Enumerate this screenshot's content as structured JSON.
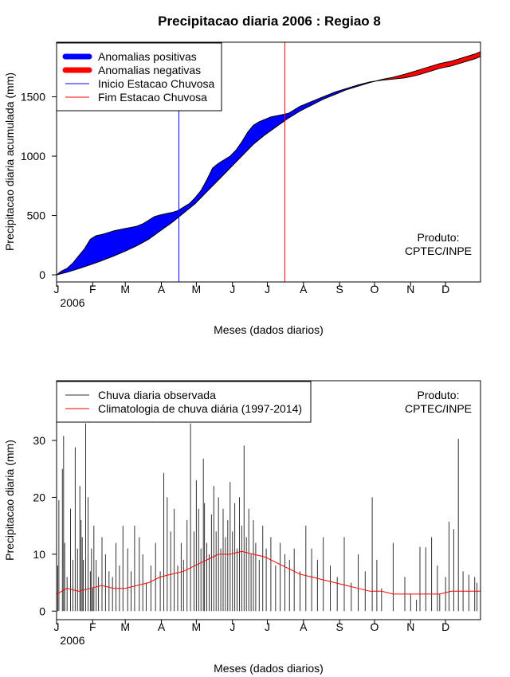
{
  "chart_data": [
    {
      "type": "area",
      "title": "Precipitacao diaria 2006 : Regiao 8",
      "xlabel": "Meses (dados diarios)",
      "ylabel": "Precipitacao diaria acumulada (mm)",
      "year_label": "2006",
      "x_ticks": [
        "J",
        "F",
        "M",
        "A",
        "M",
        "J",
        "J",
        "A",
        "S",
        "O",
        "N",
        "D"
      ],
      "x_tick_days": [
        1,
        32,
        60,
        91,
        121,
        152,
        182,
        213,
        244,
        274,
        305,
        335
      ],
      "xlim": [
        1,
        365
      ],
      "y_ticks": [
        0,
        500,
        1000,
        1500
      ],
      "ylim": [
        -60,
        1960
      ],
      "legend": [
        {
          "label": "Anomalias positivas",
          "color": "#0000ff",
          "kind": "thick"
        },
        {
          "label": "Anomalias negativas",
          "color": "#ff0000",
          "kind": "thick"
        },
        {
          "label": "Inicio Estacao Chuvosa",
          "color": "#0000ff",
          "kind": "thin"
        },
        {
          "label": "Fim Estacao Chuvosa",
          "color": "#ff0000",
          "kind": "thin"
        }
      ],
      "legend_position": "top-left",
      "rainy_season_start_day": 106,
      "rainy_season_end_day": 197,
      "credit": [
        "Produto:",
        "CPTEC/INPE"
      ],
      "observed_cumulative": {
        "days": [
          1,
          5,
          10,
          15,
          20,
          25,
          30,
          35,
          40,
          45,
          50,
          55,
          60,
          65,
          70,
          75,
          80,
          85,
          90,
          95,
          100,
          105,
          110,
          115,
          120,
          125,
          130,
          135,
          140,
          145,
          150,
          155,
          160,
          165,
          170,
          175,
          180,
          185,
          190,
          195,
          200,
          205,
          210,
          215,
          220,
          225,
          230,
          240,
          250,
          260,
          270,
          280,
          290,
          300,
          310,
          320,
          330,
          340,
          350,
          360,
          365
        ],
        "values": [
          0,
          30,
          55,
          100,
          160,
          220,
          300,
          330,
          340,
          355,
          370,
          380,
          390,
          400,
          410,
          430,
          460,
          490,
          505,
          515,
          525,
          540,
          570,
          600,
          650,
          710,
          800,
          900,
          940,
          970,
          1000,
          1050,
          1120,
          1200,
          1260,
          1290,
          1310,
          1330,
          1340,
          1350,
          1360,
          1390,
          1420,
          1440,
          1460,
          1480,
          1500,
          1540,
          1570,
          1600,
          1625,
          1640,
          1650,
          1660,
          1680,
          1710,
          1740,
          1760,
          1790,
          1820,
          1840
        ]
      },
      "climatology_cumulative": {
        "days": [
          1,
          10,
          20,
          30,
          40,
          50,
          60,
          70,
          80,
          90,
          100,
          110,
          120,
          130,
          140,
          150,
          160,
          170,
          180,
          190,
          200,
          210,
          220,
          230,
          240,
          250,
          260,
          270,
          280,
          290,
          300,
          310,
          320,
          330,
          340,
          350,
          360,
          365
        ],
        "values": [
          0,
          22,
          52,
          85,
          120,
          158,
          200,
          245,
          300,
          370,
          440,
          520,
          600,
          700,
          800,
          900,
          1000,
          1100,
          1180,
          1250,
          1320,
          1380,
          1430,
          1480,
          1520,
          1560,
          1590,
          1620,
          1645,
          1665,
          1690,
          1720,
          1750,
          1780,
          1800,
          1830,
          1860,
          1880
        ]
      }
    },
    {
      "type": "bar",
      "subtype": "bar+line",
      "xlabel": "Meses (dados diarios)",
      "ylabel": "Precipitacao diaria (mm)",
      "year_label": "2006",
      "x_ticks": [
        "J",
        "F",
        "M",
        "A",
        "M",
        "J",
        "J",
        "A",
        "S",
        "O",
        "N",
        "D"
      ],
      "x_tick_days": [
        1,
        32,
        60,
        91,
        121,
        152,
        182,
        213,
        244,
        274,
        305,
        335
      ],
      "xlim": [
        1,
        365
      ],
      "y_ticks": [
        0,
        10,
        20,
        30
      ],
      "ylim": [
        -1.5,
        40.5
      ],
      "legend": [
        {
          "label": "Chuva diaria observada",
          "color": "#333333"
        },
        {
          "label": "Climatologia de chuva diária (1997-2014)",
          "color": "#ff0000"
        }
      ],
      "legend_position": "top-left",
      "credit": [
        "Produto:",
        "CPTEC/INPE"
      ],
      "observed_daily": {
        "days": [
          2,
          3,
          6,
          7,
          8,
          10,
          13,
          15,
          17,
          19,
          21,
          22,
          23,
          24,
          26,
          28,
          30,
          31,
          32,
          33,
          35,
          37,
          40,
          43,
          46,
          49,
          52,
          55,
          58,
          62,
          65,
          68,
          72,
          75,
          78,
          82,
          86,
          90,
          93,
          96,
          99,
          102,
          105,
          108,
          110,
          113,
          116,
          119,
          121,
          123,
          125,
          127,
          128,
          130,
          132,
          134,
          136,
          138,
          140,
          142,
          144,
          146,
          148,
          150,
          152,
          154,
          156,
          158,
          160,
          162,
          164,
          166,
          168,
          170,
          172,
          175,
          178,
          181,
          185,
          189,
          193,
          197,
          201,
          205,
          210,
          215,
          220,
          225,
          230,
          236,
          242,
          248,
          254,
          260,
          266,
          272,
          276,
          280,
          290,
          300,
          305,
          310,
          313,
          318,
          323,
          328,
          330,
          335,
          338,
          342,
          346,
          350,
          355,
          360,
          362
        ],
        "values": [
          8,
          19.5,
          25,
          30.8,
          12,
          6,
          18,
          9,
          28.8,
          11,
          22,
          16,
          13,
          9,
          33,
          20,
          7,
          11,
          4,
          15,
          9,
          6,
          13,
          10,
          7,
          6,
          12,
          8,
          15,
          11,
          7,
          15,
          13,
          10,
          5,
          8,
          12,
          7,
          24.3,
          20,
          14,
          18,
          8,
          12,
          9,
          16,
          33,
          14,
          23,
          18,
          11,
          26.8,
          19,
          12,
          10,
          17,
          22,
          14,
          20,
          11,
          18,
          13,
          16,
          22.7,
          14,
          19,
          11,
          20,
          15,
          29.1,
          13,
          18,
          10,
          16,
          12,
          9,
          15,
          11,
          13,
          8,
          12,
          10,
          9,
          11,
          7,
          15,
          11,
          9,
          13,
          8,
          6,
          13,
          5,
          10,
          7,
          20,
          9,
          4,
          12,
          6,
          3,
          2,
          11.3,
          11.2,
          13,
          8,
          3,
          6,
          15.7,
          14.4,
          30.3,
          7,
          6.4,
          6,
          5
        ]
      },
      "climatology_daily": {
        "days": [
          1,
          10,
          20,
          30,
          40,
          50,
          60,
          70,
          80,
          90,
          100,
          110,
          120,
          130,
          140,
          150,
          160,
          170,
          180,
          190,
          200,
          210,
          220,
          230,
          240,
          250,
          260,
          270,
          280,
          290,
          300,
          310,
          320,
          330,
          340,
          350,
          360,
          365
        ],
        "values": [
          3,
          4,
          3.5,
          4,
          4.5,
          4,
          4,
          4.5,
          5,
          6,
          6.5,
          7,
          8,
          9,
          10,
          10,
          10.5,
          10,
          9.5,
          8.5,
          7.5,
          6.5,
          6,
          5.5,
          5,
          4.5,
          4,
          3.5,
          3.5,
          3,
          3,
          3,
          3,
          3,
          3.5,
          3.5,
          3.5,
          3.5
        ]
      }
    }
  ]
}
